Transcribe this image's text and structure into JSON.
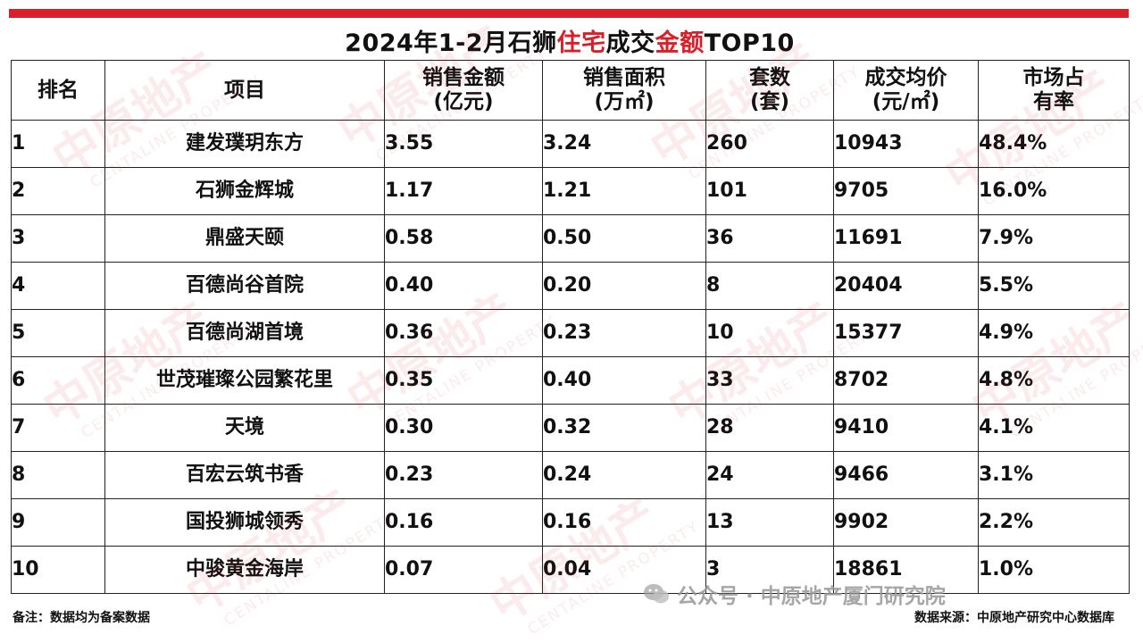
{
  "colors": {
    "accent": "#d8202a",
    "border": "#222222",
    "text": "#111111"
  },
  "title_parts": [
    {
      "text": "2024年1-2月石狮",
      "color": "#111111"
    },
    {
      "text": "住宅",
      "color": "#d8202a"
    },
    {
      "text": "成交",
      "color": "#111111"
    },
    {
      "text": "金额",
      "color": "#d8202a"
    },
    {
      "text": "TOP10",
      "color": "#111111"
    }
  ],
  "chart_data": {
    "type": "table",
    "title": "2024年1-2月石狮住宅成交金额TOP10",
    "columns": [
      {
        "line1": "排名",
        "line2": ""
      },
      {
        "line1": "项目",
        "line2": ""
      },
      {
        "line1": "销售金额",
        "line2": "(亿元)"
      },
      {
        "line1": "销售面积",
        "line2": "(万㎡)"
      },
      {
        "line1": "套数",
        "line2": "(套)"
      },
      {
        "line1": "成交均价",
        "line2": "(元/㎡)"
      },
      {
        "line1": "市场占",
        "line2": "有率"
      }
    ],
    "rows": [
      {
        "rank": "1",
        "project": "建发璞玥东方",
        "amount": "3.55",
        "area": "3.24",
        "units": "260",
        "price": "10943",
        "share": "48.4%"
      },
      {
        "rank": "2",
        "project": "石狮金辉城",
        "amount": "1.17",
        "area": "1.21",
        "units": "101",
        "price": "9705",
        "share": "16.0%"
      },
      {
        "rank": "3",
        "project": "鼎盛天颐",
        "amount": "0.58",
        "area": "0.50",
        "units": "36",
        "price": "11691",
        "share": "7.9%"
      },
      {
        "rank": "4",
        "project": "百德尚谷首院",
        "amount": "0.40",
        "area": "0.20",
        "units": "8",
        "price": "20404",
        "share": "5.5%"
      },
      {
        "rank": "5",
        "project": "百德尚湖首境",
        "amount": "0.36",
        "area": "0.23",
        "units": "10",
        "price": "15377",
        "share": "4.9%"
      },
      {
        "rank": "6",
        "project": "世茂璀璨公园繁花里",
        "amount": "0.35",
        "area": "0.40",
        "units": "33",
        "price": "8702",
        "share": "4.8%"
      },
      {
        "rank": "7",
        "project": "天境",
        "amount": "0.30",
        "area": "0.32",
        "units": "28",
        "price": "9410",
        "share": "4.1%"
      },
      {
        "rank": "8",
        "project": "百宏云筑书香",
        "amount": "0.23",
        "area": "0.24",
        "units": "24",
        "price": "9466",
        "share": "3.1%"
      },
      {
        "rank": "9",
        "project": "国投狮城领秀",
        "amount": "0.16",
        "area": "0.16",
        "units": "13",
        "price": "9902",
        "share": "2.2%"
      },
      {
        "rank": "10",
        "project": "中骏黄金海岸",
        "amount": "0.07",
        "area": "0.04",
        "units": "3",
        "price": "18861",
        "share": "1.0%"
      }
    ]
  },
  "watermark": {
    "brand": "中原地产",
    "english": "CENTALINE PROPERTY",
    "wechat": "公众号 · 中原地产厦门研究院"
  },
  "footer": {
    "left": "备注：数据均为备案数据",
    "right": "数据来源：中原地产研究中心数据库"
  }
}
